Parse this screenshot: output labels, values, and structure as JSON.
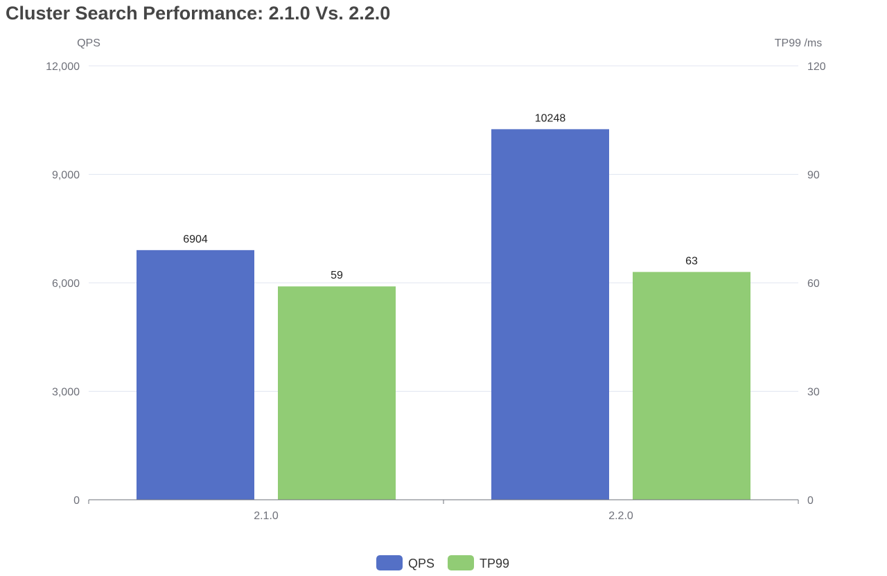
{
  "chart_data": {
    "type": "bar",
    "title": "Cluster Search Performance: 2.1.0 Vs. 2.2.0",
    "categories": [
      "2.1.0",
      "2.2.0"
    ],
    "y_left": {
      "label": "QPS",
      "range": [
        0,
        12000
      ],
      "ticks": [
        "0",
        "3,000",
        "6,000",
        "9,000",
        "12,000"
      ]
    },
    "y_right": {
      "label": "TP99 /ms",
      "range": [
        0,
        120
      ],
      "ticks": [
        "0",
        "30",
        "60",
        "90",
        "120"
      ]
    },
    "series": [
      {
        "name": "QPS",
        "axis": "left",
        "color": "#5470c6",
        "values": [
          6904,
          10248
        ]
      },
      {
        "name": "TP99",
        "axis": "right",
        "color": "#91cc75",
        "values": [
          59,
          63
        ]
      }
    ],
    "data_labels": true,
    "grid": true,
    "legend_position": "bottom-center"
  }
}
